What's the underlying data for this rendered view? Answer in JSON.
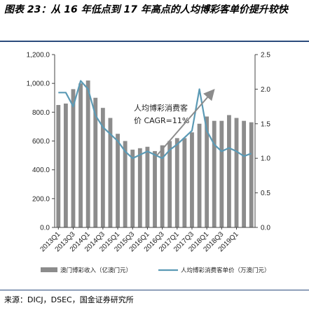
{
  "title": "图表 23：从 16 年低点到 17 年高点的人均博彩客单价提升较快",
  "source": "来源：DICJ，DSEC，国金证券研究所",
  "chart_data": {
    "type": "bar+line",
    "categories": [
      "2013Q1",
      "2013Q2",
      "2013Q3",
      "2013Q4",
      "2014Q1",
      "2014Q2",
      "2014Q3",
      "2014Q4",
      "2015Q1",
      "2015Q2",
      "2015Q3",
      "2015Q4",
      "2016Q1",
      "2016Q2",
      "2016Q3",
      "2016Q4",
      "2017Q1",
      "2017Q2",
      "2017Q3",
      "2017Q4",
      "2018Q1",
      "2018Q2",
      "2018Q3",
      "2018Q4",
      "2019Q1",
      "2019Q2",
      "2019Q3"
    ],
    "x_tick_labels": [
      "2013Q1",
      "2013Q3",
      "2014Q1",
      "2014Q3",
      "2015Q1",
      "2015Q3",
      "2016Q1",
      "2016Q3",
      "2017Q1",
      "2017Q3",
      "2018Q1",
      "2018Q3",
      "2019Q1"
    ],
    "y_left_ticks": [
      "0.0",
      "200.0",
      "400.0",
      "600.0",
      "800.0",
      "1,000.0",
      "1,200.0"
    ],
    "y_right_ticks": [
      "0.0",
      "0.5",
      "1.0",
      "1.5",
      "2.0",
      "2.5"
    ],
    "ylim_left": [
      0,
      1200
    ],
    "ylim_right": [
      0,
      2.5
    ],
    "series": [
      {
        "name": "澳门博彩收入（亿澳门元）",
        "axis": "left",
        "kind": "bar",
        "color": "#8c8c8c",
        "values": [
          850,
          860,
          960,
          1000,
          1020,
          900,
          830,
          760,
          650,
          600,
          540,
          550,
          560,
          530,
          570,
          600,
          620,
          620,
          660,
          720,
          770,
          740,
          740,
          780,
          760,
          740,
          730
        ]
      },
      {
        "name": "人均博彩消费客单价（万澳门元）",
        "axis": "right",
        "kind": "line",
        "color": "#5b9ab5",
        "values": [
          1.95,
          1.95,
          1.75,
          2.12,
          2.0,
          1.62,
          1.45,
          1.35,
          1.25,
          1.1,
          1.0,
          1.05,
          1.1,
          1.05,
          1.0,
          1.12,
          1.2,
          1.3,
          1.4,
          2.0,
          1.4,
          1.2,
          1.1,
          1.15,
          1.1,
          1.03,
          1.07
        ]
      }
    ],
    "annotation": [
      "人均博彩消费客",
      "价 CAGR=11%"
    ],
    "legend_position": "bottom"
  }
}
